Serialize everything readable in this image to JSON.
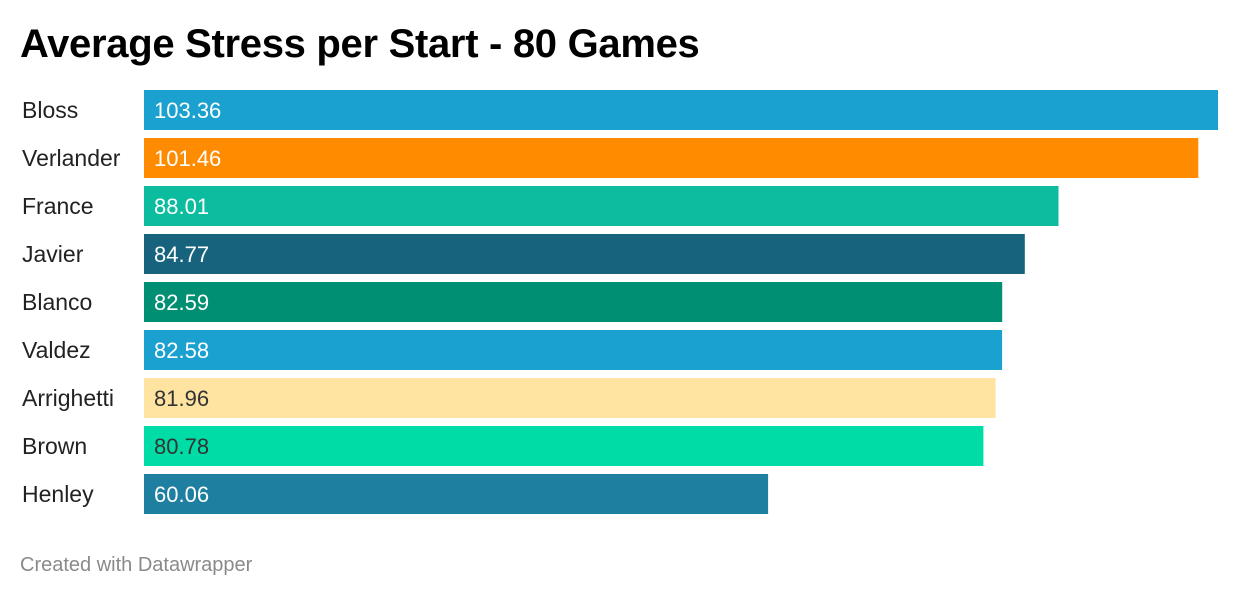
{
  "chart_data": {
    "type": "bar",
    "orientation": "horizontal",
    "title": "Average Stress per Start - 80 Games",
    "categories": [
      "Bloss",
      "Verlander",
      "France",
      "Javier",
      "Blanco",
      "Valdez",
      "Arrighetti",
      "Brown",
      "Henley"
    ],
    "values": [
      103.36,
      101.46,
      88.01,
      84.77,
      82.59,
      82.58,
      81.96,
      80.78,
      60.06
    ],
    "value_labels": [
      "103.36",
      "101.46",
      "88.01",
      "84.77",
      "82.59",
      "82.58",
      "81.96",
      "80.78",
      "60.06"
    ],
    "colors": [
      "#1aa1cf",
      "#ff8c00",
      "#0bbd9e",
      "#17637e",
      "#008f72",
      "#1aa1cf",
      "#ffe4a1",
      "#00dca6",
      "#1f7fa0"
    ],
    "label_colors": [
      "#ffffff",
      "#ffffff",
      "#ffffff",
      "#ffffff",
      "#ffffff",
      "#ffffff",
      "#333333",
      "#333333",
      "#ffffff"
    ],
    "xlim": [
      0,
      103.36
    ],
    "grid": false,
    "legend": "none"
  },
  "footer": {
    "credit": "Created with Datawrapper"
  }
}
